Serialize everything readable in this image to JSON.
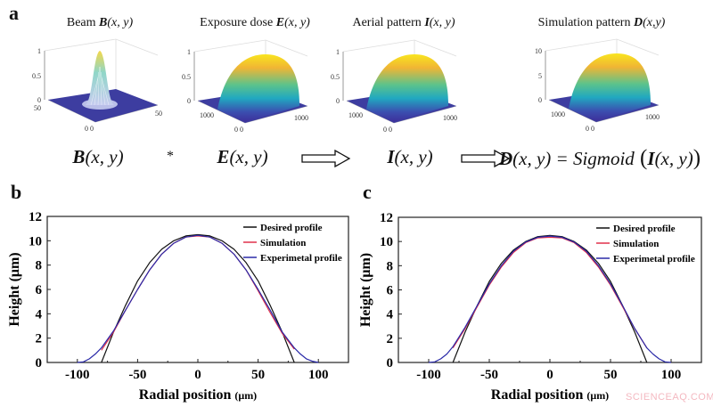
{
  "panel_a": {
    "label": "a",
    "surfaces": [
      {
        "title_prefix": "Beam ",
        "fn": "B",
        "args": "(x, y)",
        "z_ticks": [
          "1",
          "0.5",
          "0"
        ],
        "left_tick": "50",
        "origin_ticks": "0  0",
        "right_tick": "50",
        "kind": "beam"
      },
      {
        "title_prefix": "Exposure dose ",
        "fn": "E",
        "args": "(x, y)",
        "z_ticks": [
          "1",
          "0.5",
          "0"
        ],
        "left_tick": "1000",
        "origin_ticks": "0  0",
        "right_tick": "1000",
        "kind": "dome"
      },
      {
        "title_prefix": "Aerial pattern ",
        "fn": "I",
        "args": "(x, y)",
        "z_ticks": [
          "1",
          "0.5",
          "0"
        ],
        "left_tick": "1000",
        "origin_ticks": "0  0",
        "right_tick": "1000",
        "kind": "dome"
      },
      {
        "title_prefix": "Simulation pattern ",
        "fn": "D",
        "args": "(x,y)",
        "z_ticks": [
          "10",
          "5",
          "0"
        ],
        "left_tick": "1000",
        "origin_ticks": "0  0",
        "right_tick": "1000",
        "kind": "dome"
      }
    ],
    "equation": {
      "b_fn": "B",
      "b_args": "(x, y)",
      "op": "*",
      "e_fn": "E",
      "e_args": "(x, y)",
      "i_fn": "I",
      "i_args": "(x, y)",
      "d_fn": "D",
      "d_args": "(x, y) = ",
      "sigmoid": "Sigmoid",
      "open": " (",
      "inner_fn": "I",
      "inner_args": "(x, y)",
      "close": ")"
    },
    "colormap": [
      "#f9e51e",
      "#f0b534",
      "#5cc38b",
      "#21a8c0",
      "#3b4fb0",
      "#3d2f9a"
    ]
  },
  "chart_data": [
    {
      "label": "b",
      "type": "line",
      "xlabel": "Radial position",
      "xlabel_unit": "(μm)",
      "ylabel": "Height (μm)",
      "xlim": [
        -125,
        125
      ],
      "ylim": [
        0,
        12
      ],
      "xticks": [
        -100,
        -50,
        0,
        50,
        100
      ],
      "yticks": [
        0,
        2,
        4,
        6,
        8,
        10,
        12
      ],
      "legend_position": "top-right",
      "series": [
        {
          "name": "Desired profile",
          "color": "#111111",
          "x": [
            -80,
            -70,
            -60,
            -50,
            -40,
            -30,
            -20,
            -10,
            0,
            10,
            20,
            30,
            40,
            50,
            60,
            70,
            80
          ],
          "y": [
            0,
            2.5,
            4.7,
            6.7,
            8.2,
            9.3,
            10.0,
            10.4,
            10.5,
            10.4,
            10.0,
            9.3,
            8.2,
            6.7,
            4.7,
            2.5,
            0
          ]
        },
        {
          "name": "Simulation",
          "color": "#e0304a",
          "x": [
            -80,
            -70,
            -60,
            -50,
            -40,
            -30,
            -20,
            -10,
            0,
            10,
            20,
            30,
            40,
            50,
            60,
            70,
            80
          ],
          "y": [
            1.0,
            2.5,
            4.3,
            6.0,
            7.6,
            8.9,
            9.8,
            10.3,
            10.4,
            10.3,
            9.8,
            8.9,
            7.6,
            5.9,
            4.1,
            2.4,
            1.1
          ]
        },
        {
          "name": "Experimetal profile",
          "color": "#2a2aa8",
          "x": [
            -100,
            -95,
            -90,
            -85,
            -80,
            -70,
            -60,
            -50,
            -40,
            -30,
            -20,
            -10,
            0,
            10,
            20,
            30,
            40,
            50,
            60,
            70,
            80,
            85,
            90,
            95,
            100
          ],
          "y": [
            0,
            0.05,
            0.3,
            0.7,
            1.2,
            2.6,
            4.3,
            6.0,
            7.6,
            8.9,
            9.8,
            10.3,
            10.45,
            10.3,
            9.8,
            8.9,
            7.6,
            6.0,
            4.3,
            2.5,
            1.2,
            0.7,
            0.3,
            0.1,
            0
          ]
        }
      ]
    },
    {
      "label": "c",
      "type": "line",
      "xlabel": "Radial position",
      "xlabel_unit": "(μm)",
      "ylabel": "Height (μm)",
      "xlim": [
        -125,
        125
      ],
      "ylim": [
        0,
        12
      ],
      "xticks": [
        -100,
        -50,
        0,
        50,
        100
      ],
      "yticks": [
        0,
        2,
        4,
        6,
        8,
        10,
        12
      ],
      "legend_position": "top-right",
      "series": [
        {
          "name": "Desired profile",
          "color": "#111111",
          "x": [
            -80,
            -70,
            -60,
            -50,
            -40,
            -30,
            -20,
            -10,
            0,
            10,
            20,
            30,
            40,
            50,
            60,
            70,
            80
          ],
          "y": [
            0,
            2.5,
            4.7,
            6.7,
            8.2,
            9.3,
            10.0,
            10.4,
            10.5,
            10.4,
            10.0,
            9.3,
            8.2,
            6.7,
            4.7,
            2.5,
            0
          ]
        },
        {
          "name": "Simulation",
          "color": "#e0304a",
          "x": [
            -80,
            -70,
            -60,
            -50,
            -40,
            -30,
            -20,
            -10,
            0,
            10,
            20,
            30,
            40,
            50,
            60,
            70,
            80
          ],
          "y": [
            1.2,
            2.8,
            4.6,
            6.4,
            7.9,
            9.1,
            9.9,
            10.3,
            10.35,
            10.3,
            9.9,
            9.1,
            7.9,
            6.4,
            4.6,
            2.8,
            1.2
          ]
        },
        {
          "name": "Experimetal profile",
          "color": "#2a2aa8",
          "x": [
            -100,
            -95,
            -90,
            -85,
            -80,
            -70,
            -60,
            -50,
            -40,
            -30,
            -20,
            -10,
            0,
            10,
            20,
            30,
            40,
            50,
            60,
            70,
            80,
            85,
            90,
            95,
            100
          ],
          "y": [
            0,
            0.05,
            0.3,
            0.7,
            1.3,
            2.9,
            4.7,
            6.5,
            8.0,
            9.2,
            9.95,
            10.35,
            10.45,
            10.35,
            9.95,
            9.2,
            8.0,
            6.5,
            4.7,
            2.8,
            1.2,
            0.7,
            0.3,
            0.05,
            0
          ]
        }
      ]
    }
  ],
  "watermark": "SCIENCEAQ.COM"
}
